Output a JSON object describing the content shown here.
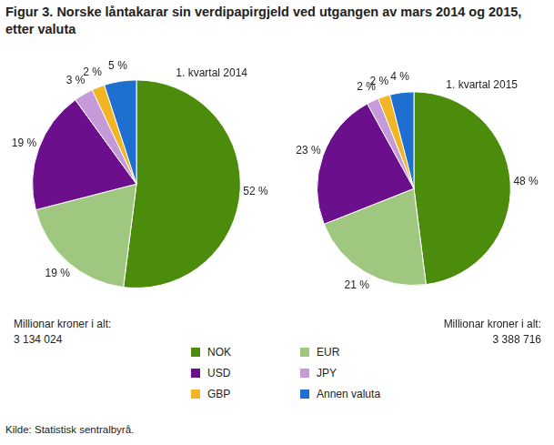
{
  "title": "Figur 3. Norske låntakarar sin verdipapirgjeld ved utgangen av mars 2014 og 2015, etter valuta",
  "source": "Kilde: Statistisk sentralbyrå.",
  "legend": "bottom",
  "chart_data": [
    {
      "type": "pie",
      "title": "1. kvartal 2014",
      "categories": [
        "NOK",
        "EUR",
        "USD",
        "JPY",
        "GBP",
        "Annen valuta"
      ],
      "values": [
        52,
        19,
        19,
        3,
        2,
        5
      ],
      "value_labels": [
        "52 %",
        "19 %",
        "19 %",
        "3 %",
        "2 %",
        "5 %"
      ],
      "colors": [
        "#4c8c0c",
        "#9fc77f",
        "#6b0f8c",
        "#c59ad8",
        "#f2b524",
        "#1f6fd0"
      ],
      "data_labels": true,
      "total_caption": "Millionar kroner i alt:",
      "total": {
        "value": 3134024,
        "label": "3 134 024"
      }
    },
    {
      "type": "pie",
      "title": "1. kvartal 2015",
      "categories": [
        "NOK",
        "EUR",
        "USD",
        "JPY",
        "GBP",
        "Annen valuta"
      ],
      "values": [
        48,
        21,
        23,
        2,
        2,
        4
      ],
      "value_labels": [
        "48 %",
        "21 %",
        "23 %",
        "2 %",
        "2 %",
        "4 %"
      ],
      "colors": [
        "#4c8c0c",
        "#9fc77f",
        "#6b0f8c",
        "#c59ad8",
        "#f2b524",
        "#1f6fd0"
      ],
      "data_labels": true,
      "total_caption": "Millionar kroner i alt:",
      "total": {
        "value": 3388716,
        "label": "3 388 716"
      }
    }
  ]
}
